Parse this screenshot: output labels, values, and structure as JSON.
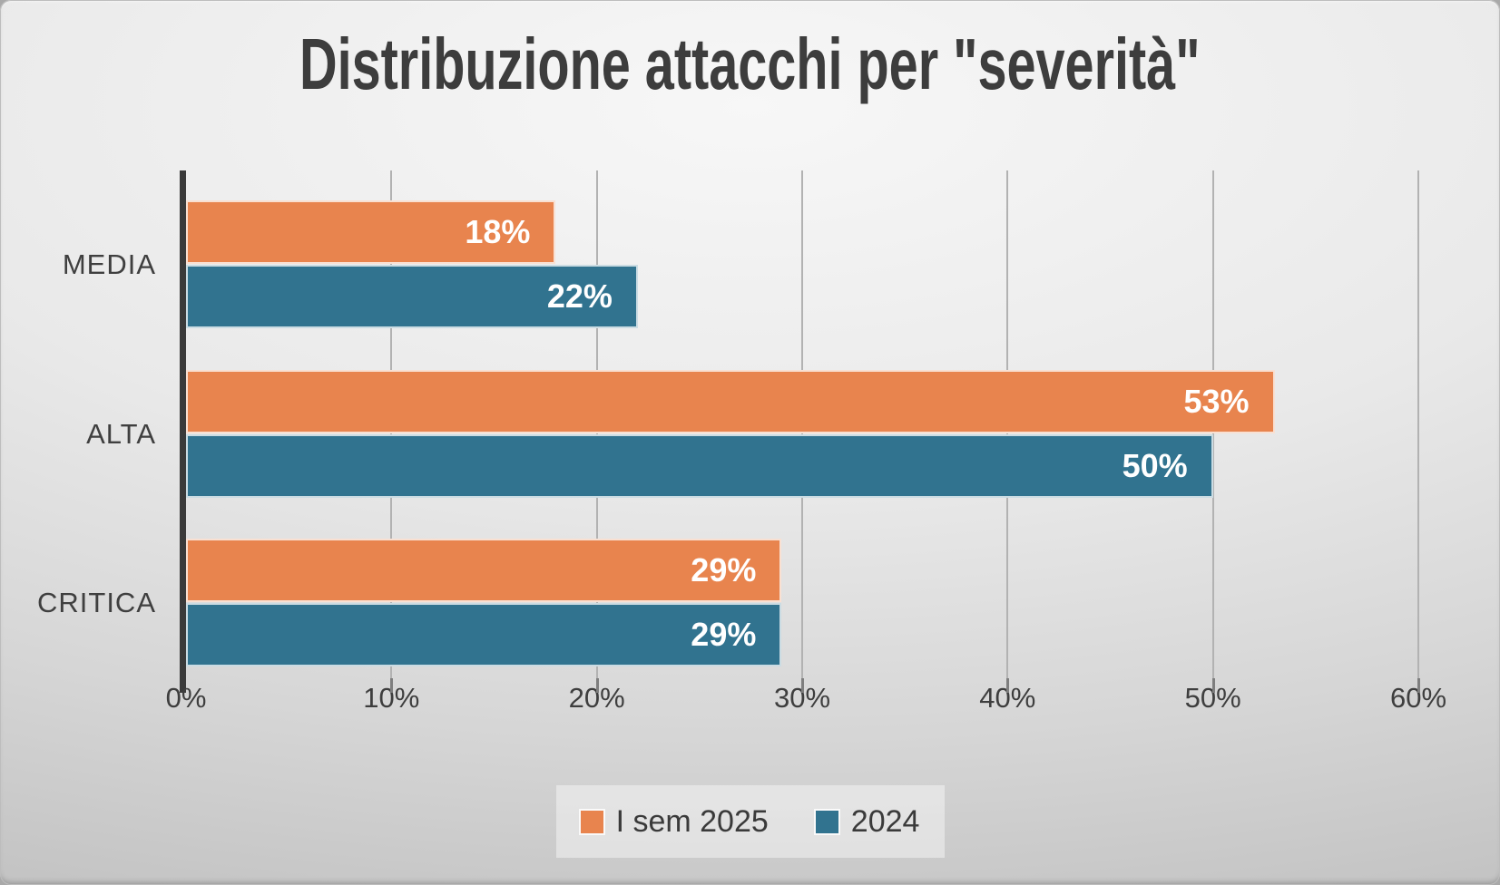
{
  "chart_data": {
    "type": "bar",
    "orientation": "horizontal",
    "title": "Distribuzione attacchi per \"severità\"",
    "categories": [
      "MEDIA",
      "ALTA",
      "CRITICA"
    ],
    "series": [
      {
        "name": "I sem 2025",
        "color": "#E8844E",
        "values": [
          18,
          53,
          29
        ]
      },
      {
        "name": "2024",
        "color": "#31738F",
        "values": [
          22,
          50,
          29
        ]
      }
    ],
    "value_suffix": "%",
    "xlabel": "",
    "ylabel": "",
    "xlim": [
      0,
      60
    ],
    "x_ticks": [
      "0%",
      "10%",
      "20%",
      "30%",
      "40%",
      "50%",
      "60%"
    ],
    "grid": true,
    "legend_position": "bottom",
    "colors": {
      "title_text": "#3d3d3d",
      "axis_text": "#3e3e3e",
      "bar_label_text": "#ffffff",
      "gridline": "#b2b2b2",
      "axis_line": "#3a3a3a"
    }
  }
}
